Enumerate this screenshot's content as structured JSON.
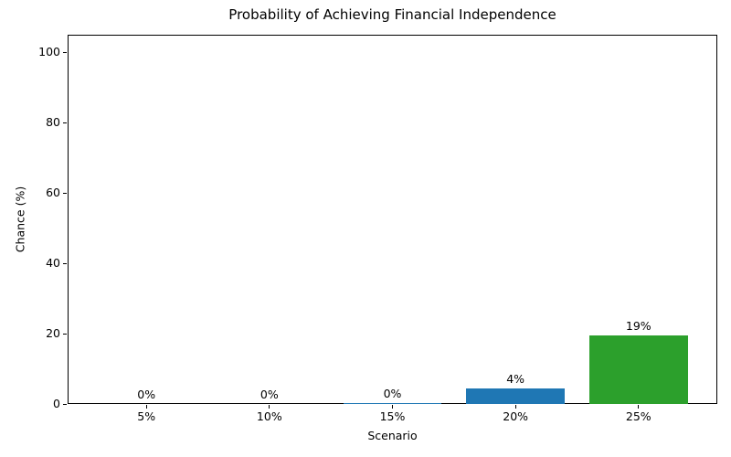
{
  "chart_data": {
    "type": "bar",
    "title": "Probability of Achieving Financial Independence",
    "xlabel": "Scenario",
    "ylabel": "Chance (%)",
    "categories": [
      "5%",
      "10%",
      "15%",
      "20%",
      "25%"
    ],
    "values": [
      0,
      0,
      0.3,
      4.3,
      19.4
    ],
    "bar_labels": [
      "0%",
      "0%",
      "0%",
      "4%",
      "19%"
    ],
    "bar_colors": [
      "#1f77b4",
      "#1f77b4",
      "#1f77b4",
      "#1f77b4",
      "#2ca02c"
    ],
    "ylim": [
      0,
      105
    ],
    "yticks": [
      0,
      20,
      40,
      60,
      80,
      100
    ],
    "grid": false,
    "legend": null
  }
}
